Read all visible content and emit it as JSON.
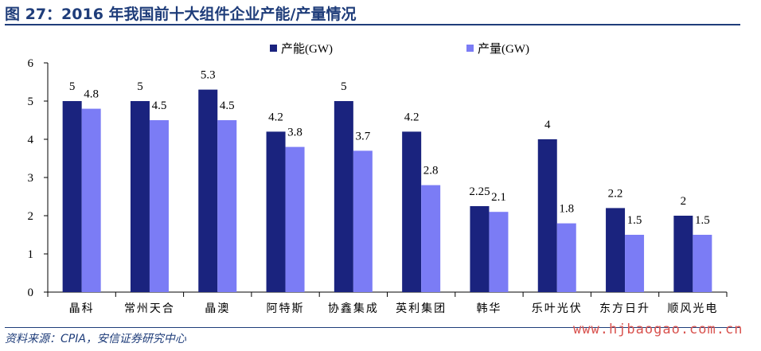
{
  "header": {
    "title": "图 27：2016 年我国前十大组件企业产能/产量情况"
  },
  "footer": {
    "source": "资料来源：CPIA，安信证券研究中心",
    "watermark": "www.hjbaogao.com.cn"
  },
  "colors": {
    "capacity": "#1a237e",
    "output": "#7b7cf5",
    "title": "#1f3d7a",
    "watermark": "#d9534f"
  },
  "chart_data": {
    "type": "bar",
    "categories": [
      "晶科",
      "常州天合",
      "晶澳",
      "阿特斯",
      "协鑫集成",
      "英利集团",
      "韩华",
      "乐叶光伏",
      "东方日升",
      "顺风光电"
    ],
    "series": [
      {
        "name": "产能(GW)",
        "values": [
          5,
          5,
          5.3,
          4.2,
          5,
          4.2,
          2.25,
          4,
          2.2,
          2
        ]
      },
      {
        "name": "产量(GW)",
        "values": [
          4.8,
          4.5,
          4.5,
          3.8,
          3.7,
          2.8,
          2.1,
          1.8,
          1.5,
          1.5
        ]
      }
    ],
    "data_labels": [
      [
        "5",
        "5",
        "5.3",
        "4.2",
        "5",
        "4.2",
        "2.25",
        "4",
        "2.2",
        "2"
      ],
      [
        "4.8",
        "4.5",
        "4.5",
        "3.8",
        "3.7",
        "2.8",
        "2.1",
        "1.8",
        "1.5",
        "1.5"
      ]
    ],
    "yticks": [
      "0",
      "1",
      "2",
      "3",
      "4",
      "5",
      "6"
    ],
    "ylim": [
      0,
      6
    ],
    "legend_position": "top-center",
    "grid": false
  }
}
